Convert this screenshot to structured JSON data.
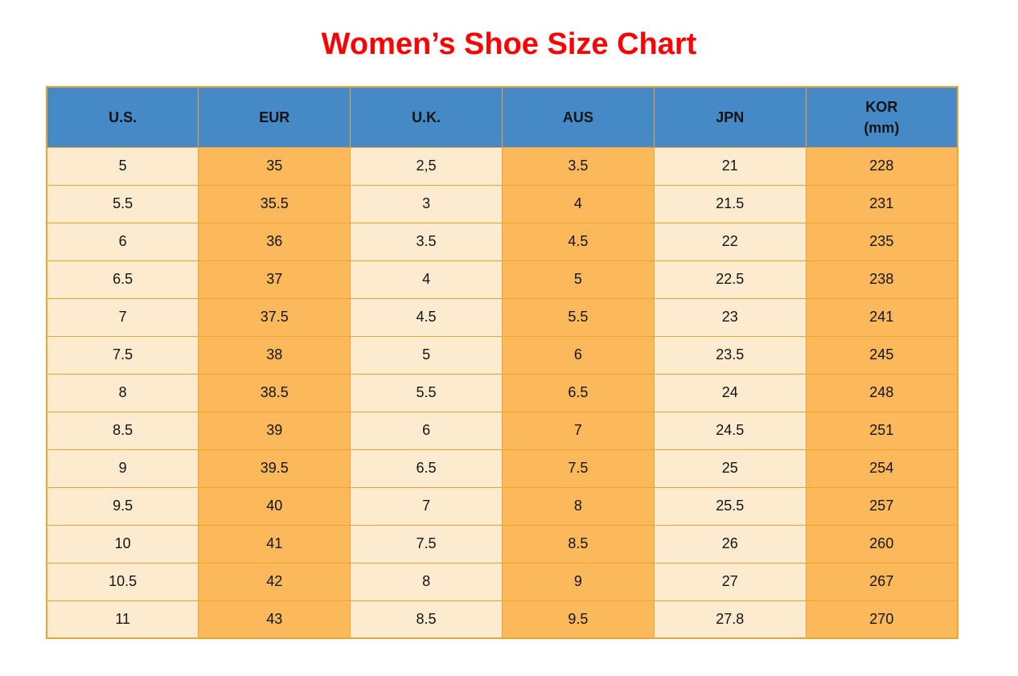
{
  "title": "Women’s Shoe Size Chart",
  "colors": {
    "title_red": "#ff0000",
    "header_blue": "#4589c6",
    "cell_cream": "#fdebd0",
    "cell_orange": "#fbb95c",
    "border_orange": "#f2a331",
    "text_black": "#141414"
  },
  "chart_data": {
    "type": "table",
    "title": "Women’s Shoe Size Chart",
    "columns": [
      {
        "id": "us",
        "label": "U.S."
      },
      {
        "id": "eur",
        "label": "EUR"
      },
      {
        "id": "uk",
        "label": "U.K."
      },
      {
        "id": "aus",
        "label": "AUS"
      },
      {
        "id": "jpn",
        "label": "JPN"
      },
      {
        "id": "kor",
        "label": "KOR",
        "sublabel": "(mm)"
      }
    ],
    "rows": [
      [
        "5",
        "35",
        "2,5",
        "3.5",
        "21",
        "228"
      ],
      [
        "5.5",
        "35.5",
        "3",
        "4",
        "21.5",
        "231"
      ],
      [
        "6",
        "36",
        "3.5",
        "4.5",
        "22",
        "235"
      ],
      [
        "6.5",
        "37",
        "4",
        "5",
        "22.5",
        "238"
      ],
      [
        "7",
        "37.5",
        "4.5",
        "5.5",
        "23",
        "241"
      ],
      [
        "7.5",
        "38",
        "5",
        "6",
        "23.5",
        "245"
      ],
      [
        "8",
        "38.5",
        "5.5",
        "6.5",
        "24",
        "248"
      ],
      [
        "8.5",
        "39",
        "6",
        "7",
        "24.5",
        "251"
      ],
      [
        "9",
        "39.5",
        "6.5",
        "7.5",
        "25",
        "254"
      ],
      [
        "9.5",
        "40",
        "7",
        "8",
        "25.5",
        "257"
      ],
      [
        "10",
        "41",
        "7.5",
        "8.5",
        "26",
        "260"
      ],
      [
        "10.5",
        "42",
        "8",
        "9",
        "27",
        "267"
      ],
      [
        "11",
        "43",
        "8.5",
        "9.5",
        "27.8",
        "270"
      ]
    ],
    "layout": {
      "column_fill_pattern": [
        "cream",
        "orange",
        "cream",
        "orange",
        "cream",
        "orange"
      ],
      "header_text_color": "black",
      "grid": "on"
    }
  }
}
